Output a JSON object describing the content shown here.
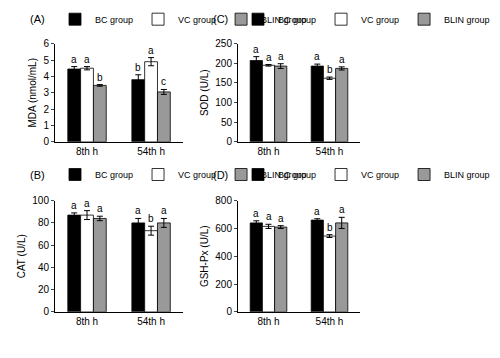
{
  "chart_data": [
    {
      "type": "bar",
      "panel": "(A)",
      "y_label": "MDA (nmol/mL)",
      "categories": [
        "8th h",
        "54th h"
      ],
      "series": [
        {
          "name": "BC group",
          "color": "#000000",
          "values": [
            4.45,
            3.8
          ],
          "error": [
            0.15,
            0.3
          ],
          "letters": [
            "a",
            "b"
          ]
        },
        {
          "name": "VC group",
          "color": "#ffffff",
          "values": [
            4.5,
            4.9
          ],
          "error": [
            0.1,
            0.25
          ],
          "letters": [
            "a",
            "a"
          ]
        },
        {
          "name": "BLIN group",
          "color": "#999999",
          "values": [
            3.45,
            3.05
          ],
          "error": [
            0.05,
            0.15
          ],
          "letters": [
            "b",
            "c"
          ]
        }
      ],
      "ylim": [
        0,
        6
      ],
      "yticks": [
        0,
        1,
        2,
        3,
        4,
        5,
        6
      ],
      "legend": "top left"
    },
    {
      "type": "bar",
      "panel": "(B)",
      "y_label": "CAT (U/L)",
      "categories": [
        "8th h",
        "54th h"
      ],
      "series": [
        {
          "name": "BC group",
          "color": "#000000",
          "values": [
            87,
            80
          ],
          "error": [
            2,
            4
          ],
          "letters": [
            "a",
            "a"
          ]
        },
        {
          "name": "VC group",
          "color": "#ffffff",
          "values": [
            87,
            73
          ],
          "error": [
            4,
            4
          ],
          "letters": [
            "a",
            "b"
          ]
        },
        {
          "name": "BLIN group",
          "color": "#999999",
          "values": [
            84,
            80
          ],
          "error": [
            2,
            4
          ],
          "letters": [
            "a",
            "a"
          ]
        }
      ],
      "ylim": [
        0,
        100
      ],
      "yticks": [
        0,
        20,
        40,
        60,
        80,
        100
      ],
      "legend": "top left"
    },
    {
      "type": "bar",
      "panel": "(C)",
      "y_label": "SOD (U/L)",
      "categories": [
        "8th h",
        "54th h"
      ],
      "series": [
        {
          "name": "BC group",
          "color": "#000000",
          "values": [
            207,
            193
          ],
          "error": [
            10,
            5
          ],
          "letters": [
            "a",
            "a"
          ]
        },
        {
          "name": "VC group",
          "color": "#ffffff",
          "values": [
            195,
            162
          ],
          "error": [
            2,
            3
          ],
          "letters": [
            "a",
            "b"
          ]
        },
        {
          "name": "BLIN group",
          "color": "#999999",
          "values": [
            193,
            187
          ],
          "error": [
            6,
            4
          ],
          "letters": [
            "a",
            "a"
          ]
        }
      ],
      "ylim": [
        0,
        250
      ],
      "yticks": [
        0,
        50,
        100,
        150,
        200,
        250
      ],
      "legend": "top left"
    },
    {
      "type": "bar",
      "panel": "(D)",
      "y_label": "GSH-Px (U/L)",
      "categories": [
        "8th h",
        "54th h"
      ],
      "series": [
        {
          "name": "BC group",
          "color": "#000000",
          "values": [
            640,
            660
          ],
          "error": [
            15,
            10
          ],
          "letters": [
            "a",
            "a"
          ]
        },
        {
          "name": "VC group",
          "color": "#ffffff",
          "values": [
            615,
            545
          ],
          "error": [
            15,
            10
          ],
          "letters": [
            "a",
            "b"
          ]
        },
        {
          "name": "BLIN group",
          "color": "#999999",
          "values": [
            610,
            640
          ],
          "error": [
            10,
            40
          ],
          "letters": [
            "a",
            "a"
          ]
        }
      ],
      "ylim": [
        0,
        800
      ],
      "yticks": [
        0,
        200,
        400,
        600,
        800
      ],
      "legend": "top left"
    }
  ]
}
